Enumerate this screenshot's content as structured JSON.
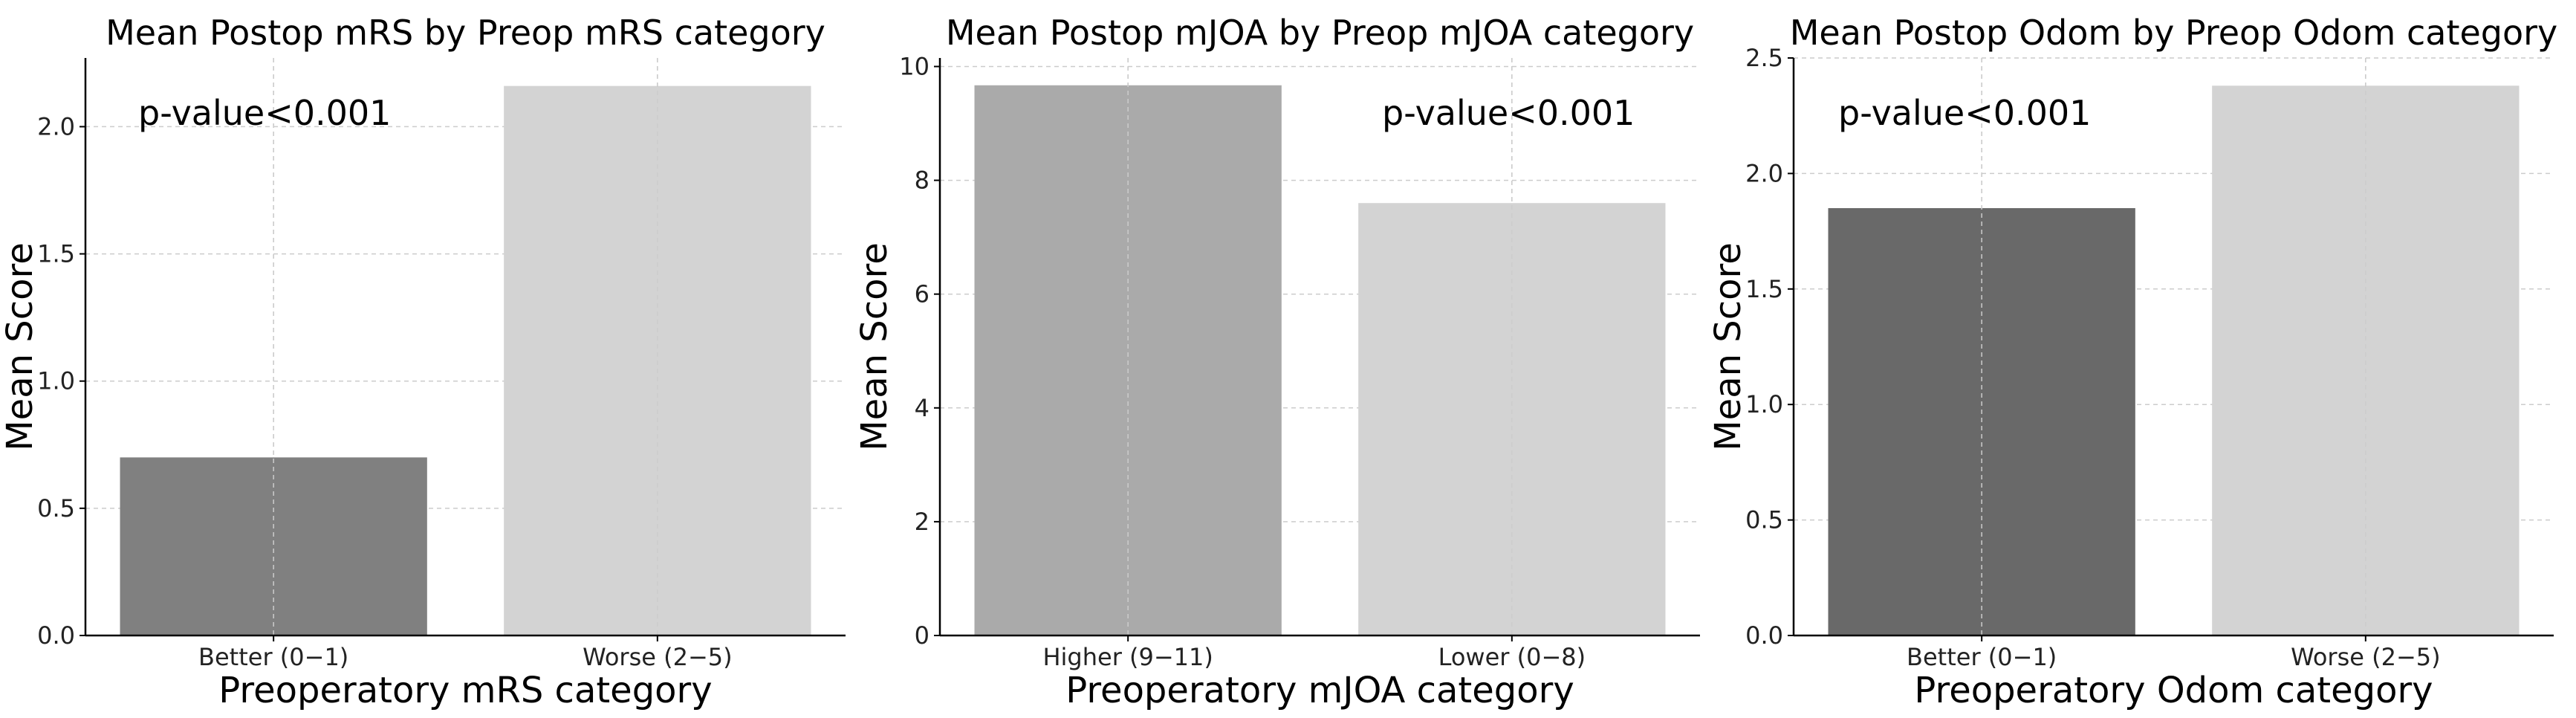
{
  "chart_data": [
    {
      "type": "bar",
      "title": "Mean Postop mRS by Preop mRS category",
      "xlabel": "Preoperatory mRS category",
      "ylabel": "Mean Score",
      "categories": [
        "Better (0−1)",
        "Worse (2−5)"
      ],
      "values": [
        0.7,
        2.16
      ],
      "colors": [
        "#808080",
        "#d3d3d3"
      ],
      "ylim": [
        0,
        2.27
      ],
      "yticks": [
        0.0,
        0.5,
        1.0,
        1.5,
        2.0
      ],
      "ytick_labels": [
        "0.0",
        "0.5",
        "1.0",
        "1.5",
        "2.0"
      ],
      "annotation": "p-value<0.001",
      "grid": true
    },
    {
      "type": "bar",
      "title": "Mean Postop mJOA by Preop mJOA category",
      "xlabel": "Preoperatory mJOA category",
      "ylabel": "Mean Score",
      "categories": [
        "Higher (9−11)",
        "Lower (0−8)"
      ],
      "values": [
        9.67,
        7.6
      ],
      "colors": [
        "#aaaaaa",
        "#d3d3d3"
      ],
      "ylim": [
        0,
        10.15
      ],
      "yticks": [
        0,
        2,
        4,
        6,
        8,
        10
      ],
      "ytick_labels": [
        "0",
        "2",
        "4",
        "6",
        "8",
        "10"
      ],
      "annotation": "p-value<0.001",
      "grid": true
    },
    {
      "type": "bar",
      "title": "Mean Postop Odom by Preop Odom category",
      "xlabel": "Preoperatory Odom category",
      "ylabel": "Mean Score",
      "categories": [
        "Better (0−1)",
        "Worse (2−5)"
      ],
      "values": [
        1.85,
        2.38
      ],
      "colors": [
        "#696969",
        "#d3d3d3"
      ],
      "ylim": [
        0,
        2.5
      ],
      "yticks": [
        0.0,
        0.5,
        1.0,
        1.5,
        2.0,
        2.5
      ],
      "ytick_labels": [
        "0.0",
        "0.5",
        "1.0",
        "1.5",
        "2.0",
        "2.5"
      ],
      "annotation": "p-value<0.001",
      "grid": true
    }
  ]
}
